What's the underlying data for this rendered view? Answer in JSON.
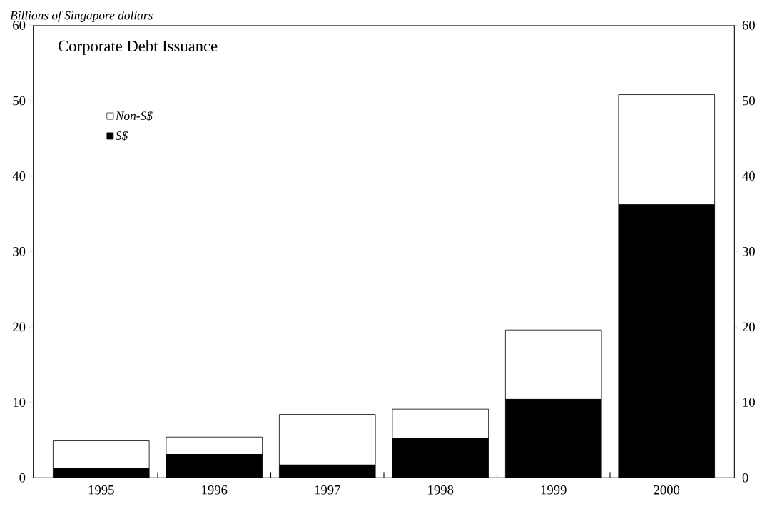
{
  "chart_data": {
    "type": "bar",
    "stacked": true,
    "title": "Corporate Debt Issuance",
    "ylabel": "Billions of Singapore dollars",
    "categories": [
      "1995",
      "1996",
      "1997",
      "1998",
      "1999",
      "2000"
    ],
    "series": [
      {
        "name": "S$",
        "color": "#000000",
        "values": [
          1.3,
          3.1,
          1.7,
          5.2,
          10.4,
          36.2
        ]
      },
      {
        "name": "Non-S$",
        "color": "#ffffff",
        "values": [
          3.6,
          2.3,
          6.7,
          3.9,
          9.2,
          14.6
        ]
      }
    ],
    "ylim": [
      0,
      60
    ],
    "yticks": [
      0,
      10,
      20,
      30,
      40,
      50,
      60
    ],
    "y2lim": [
      0,
      60
    ],
    "y2ticks": [
      0,
      10,
      20,
      30,
      40,
      50,
      60
    ],
    "legend": "top left",
    "grid": false
  }
}
